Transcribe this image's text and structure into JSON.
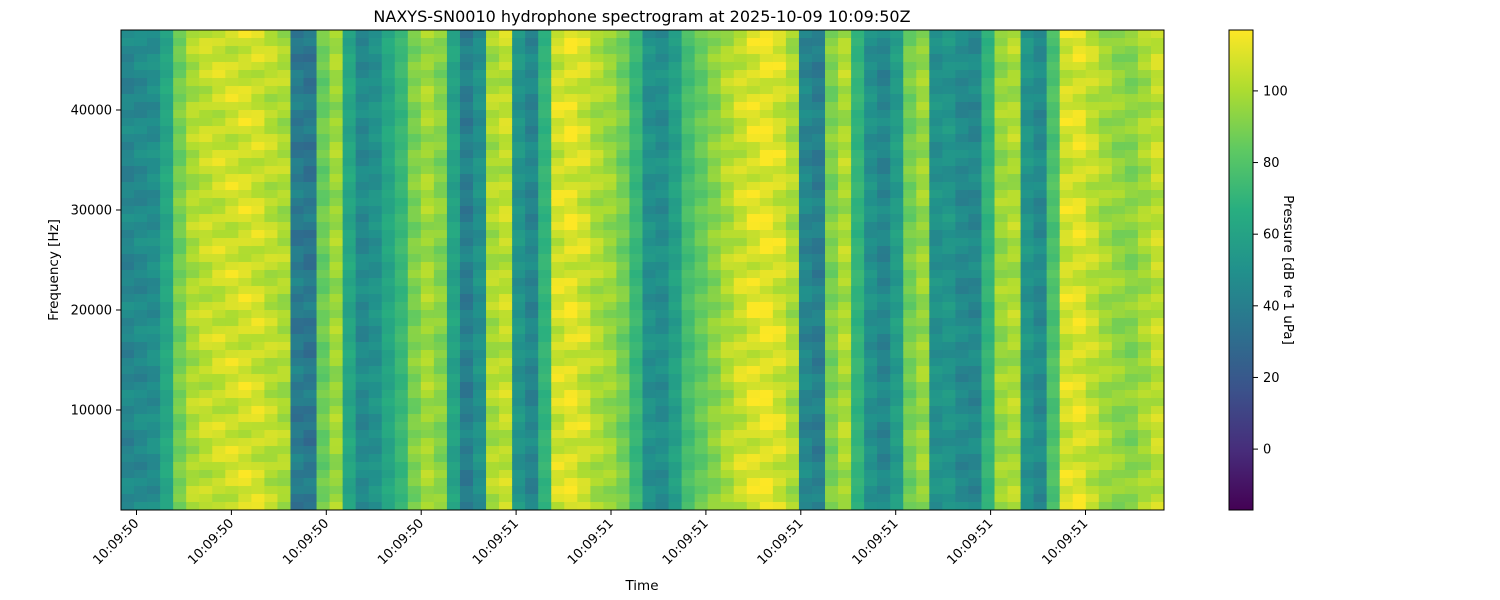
{
  "chart_data": {
    "type": "heatmap",
    "title": "NAXYS-SN0010 hydrophone spectrogram at 2025-10-09 10:09:50Z",
    "xlabel": "Time",
    "ylabel": "Frequency [Hz]",
    "ylim": [
      0,
      48000
    ],
    "y_ticks": [
      10000,
      20000,
      30000,
      40000
    ],
    "x_tick_labels": [
      "10:09:50",
      "10:09:50",
      "10:09:50",
      "10:09:50",
      "10:09:51",
      "10:09:51",
      "10:09:51",
      "10:09:51",
      "10:09:51",
      "10:09:51",
      "10:09:51"
    ],
    "colormap": "viridis",
    "colorbar": {
      "label": "Pressure [dB re 1 uPa]",
      "range": [
        -17,
        117
      ],
      "ticks": [
        0,
        20,
        40,
        60,
        80,
        100
      ]
    },
    "time_profile_db": [
      44,
      46,
      48,
      62,
      88,
      100,
      104,
      106,
      107,
      108,
      107,
      103,
      100,
      38,
      36,
      86,
      97,
      62,
      46,
      50,
      62,
      72,
      90,
      98,
      92,
      60,
      40,
      50,
      100,
      104,
      52,
      44,
      70,
      108,
      111,
      107,
      100,
      96,
      88,
      72,
      50,
      48,
      58,
      76,
      84,
      92,
      100,
      106,
      110,
      112,
      108,
      100,
      44,
      40,
      90,
      100,
      70,
      50,
      44,
      56,
      88,
      96,
      50,
      52,
      46,
      45,
      70,
      96,
      100,
      52,
      46,
      78,
      108,
      110,
      104,
      98,
      94,
      92,
      98,
      104
    ]
  }
}
